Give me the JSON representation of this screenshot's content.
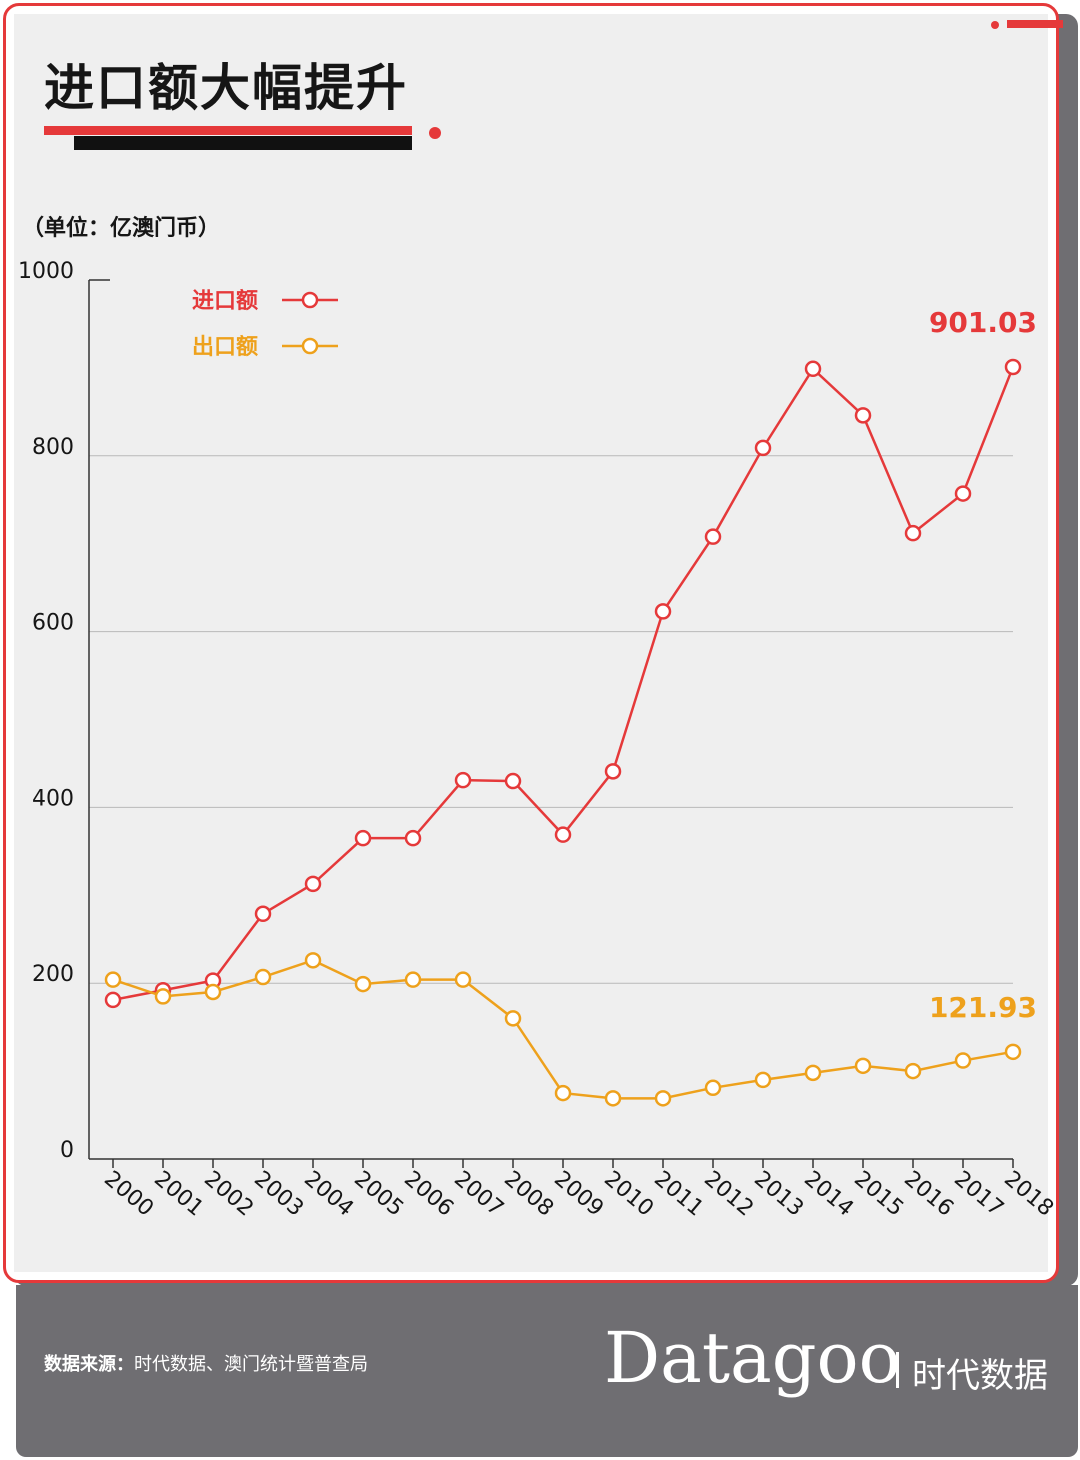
{
  "title": "进口额大幅提升",
  "unit_label": "（单位：亿澳门币）",
  "colors": {
    "import": "#e5393a",
    "export": "#eea11c",
    "accent": "#e5393a",
    "footer": "#6f6e72"
  },
  "footer": {
    "source_label": "数据来源：",
    "source_text": "时代数据、澳门统计暨普查局",
    "brand_name": "Datagoo",
    "brand_cn": "时代数据"
  },
  "chart_data": {
    "type": "line",
    "x": [
      "2000",
      "2001",
      "2002",
      "2003",
      "2004",
      "2005",
      "2006",
      "2007",
      "2008",
      "2009",
      "2010",
      "2011",
      "2012",
      "2013",
      "2014",
      "2015",
      "2016",
      "2017",
      "2018"
    ],
    "series": [
      {
        "name": "进口额",
        "color": "#e5393a",
        "values": [
          181,
          192,
          203,
          279,
          313,
          365,
          365,
          431,
          430,
          369,
          441,
          623,
          708,
          809,
          899,
          846,
          712,
          757,
          901.03
        ],
        "end_label": "901.03"
      },
      {
        "name": "出口额",
        "color": "#eea11c",
        "values": [
          204,
          185,
          190,
          207,
          226,
          199,
          204,
          204,
          160,
          75,
          69,
          69,
          81,
          90,
          98,
          106,
          100,
          112,
          121.93
        ],
        "end_label": "121.93"
      }
    ],
    "yticks": [
      0,
      200,
      400,
      600,
      800,
      1000
    ],
    "ylim": [
      0,
      1000
    ],
    "xlabel": "",
    "ylabel": "",
    "grid": true,
    "legend_position": "top-left"
  }
}
